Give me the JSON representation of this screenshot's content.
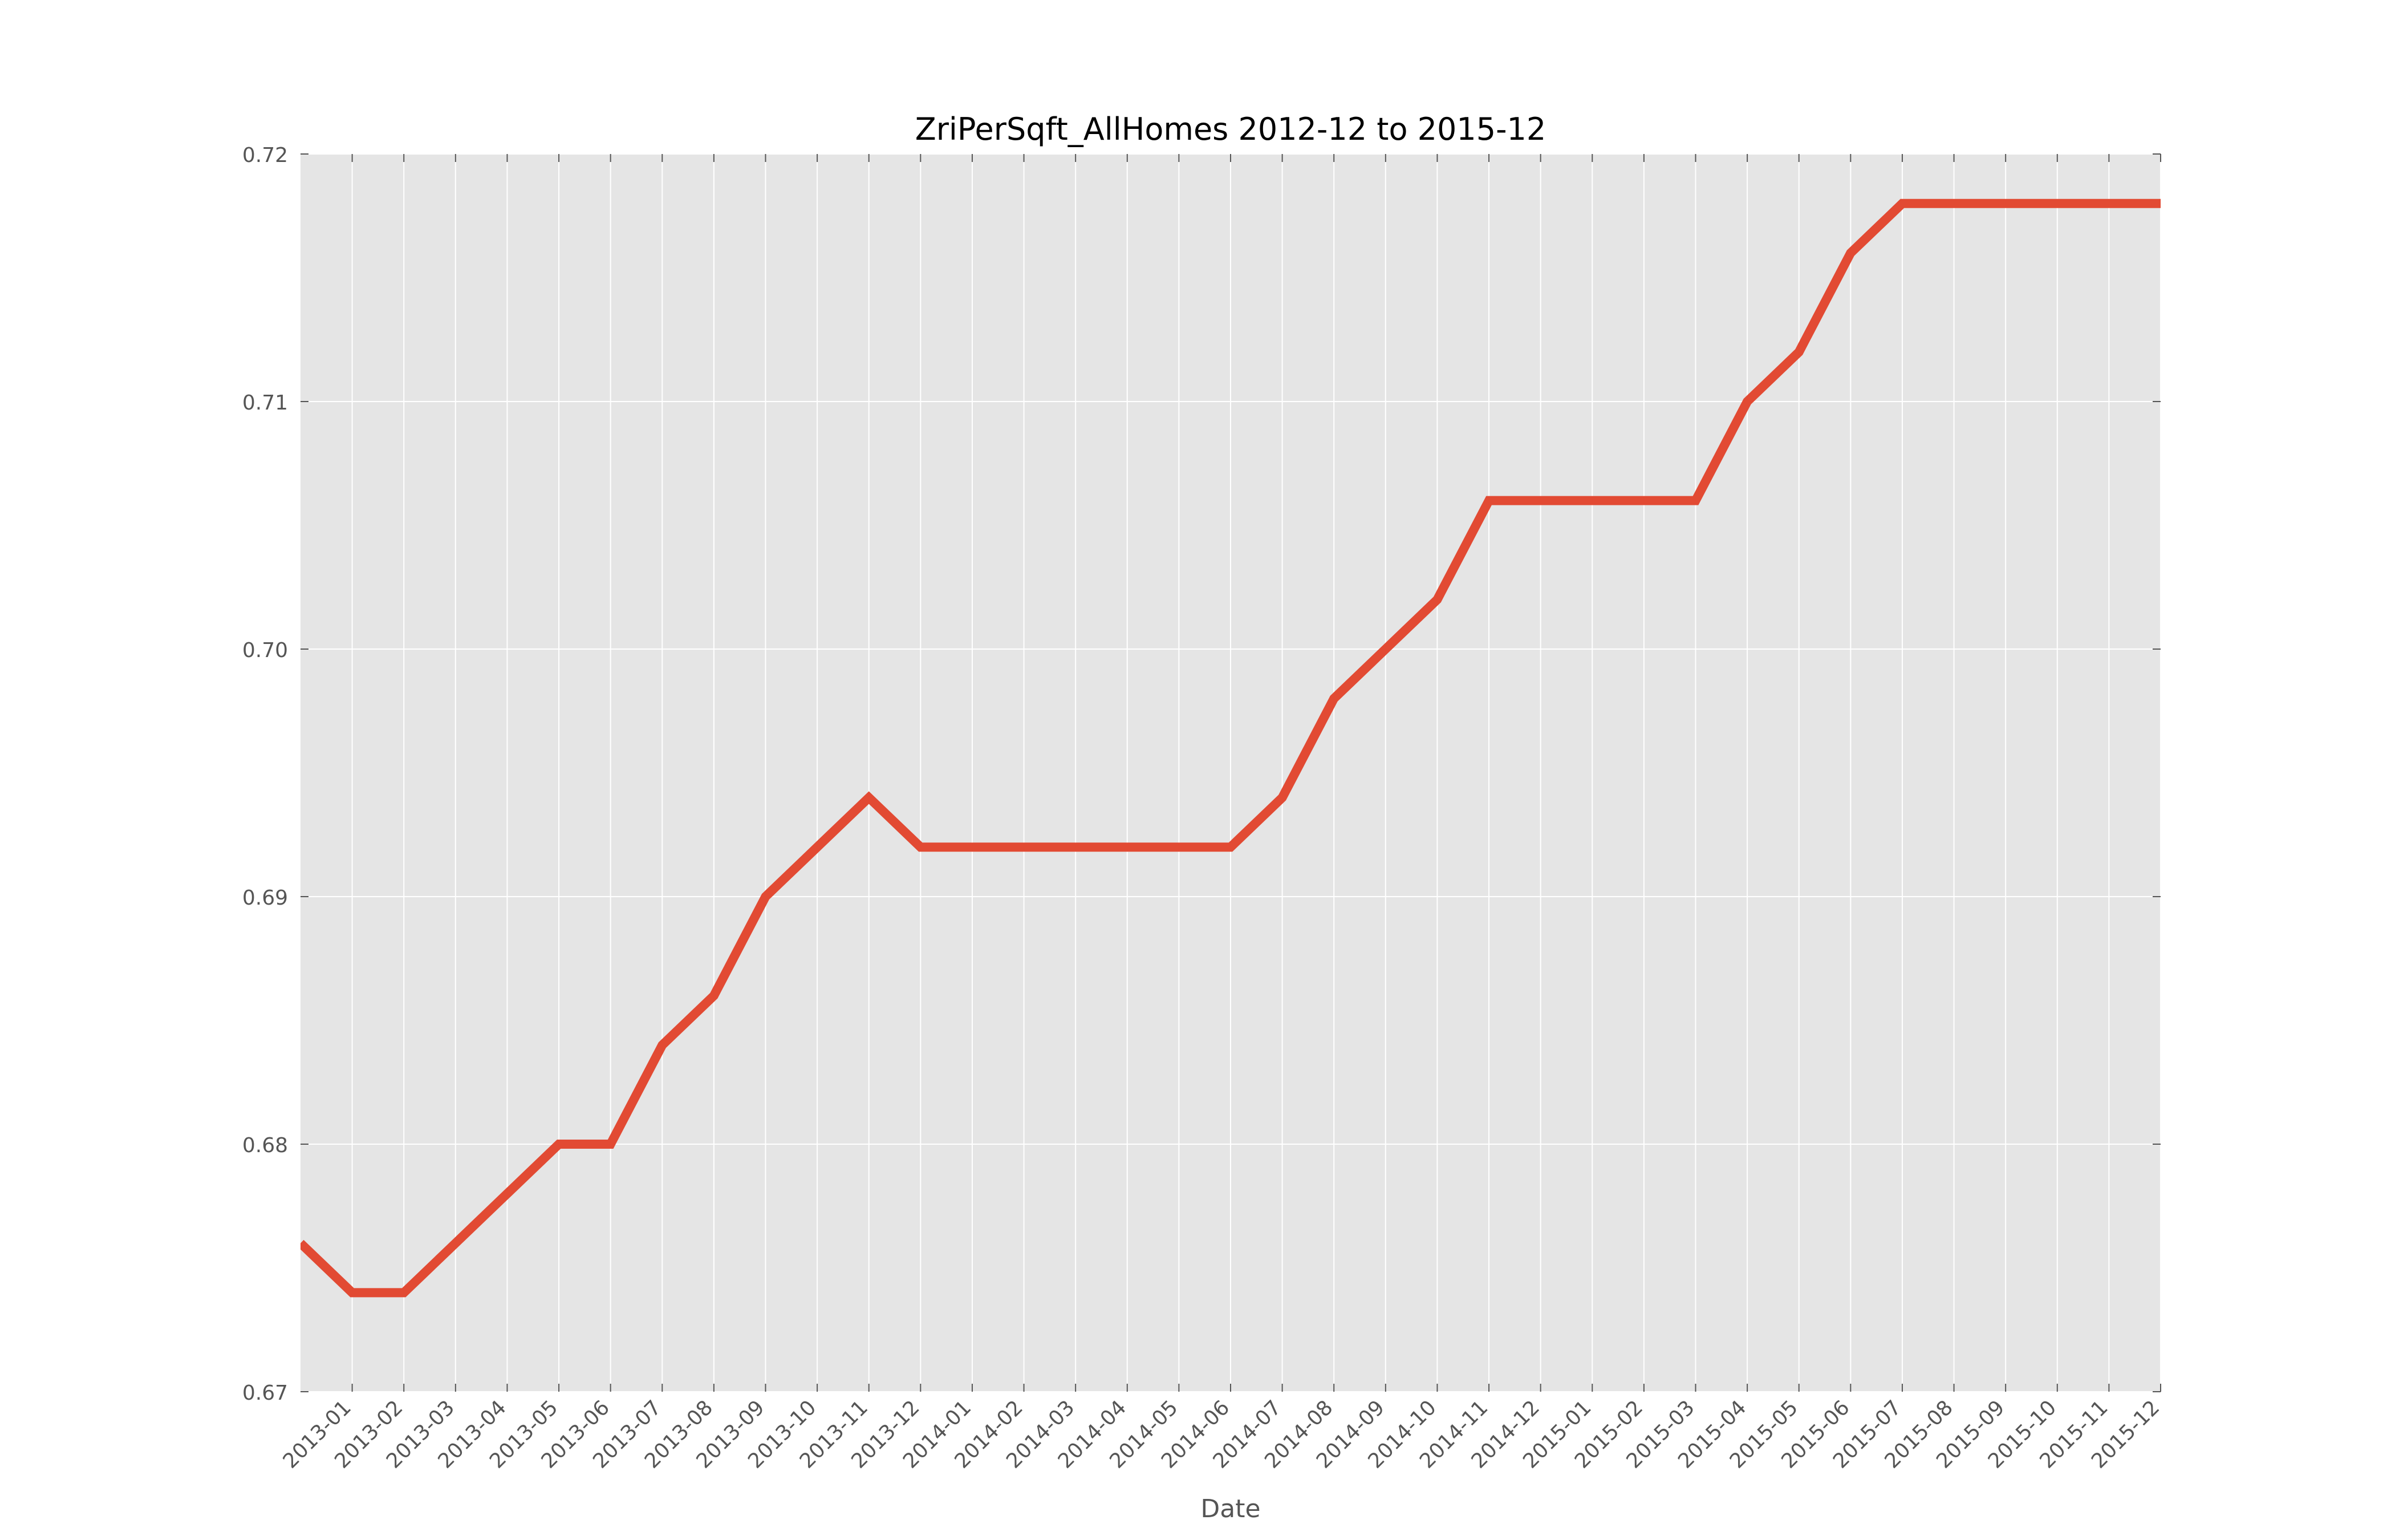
{
  "chart_data": {
    "type": "line",
    "title": "ZriPerSqft_AllHomes 2012-12 to 2015-12",
    "xlabel": "Date",
    "ylabel": "",
    "ylim": [
      0.67,
      0.72
    ],
    "yticks": [
      "0.67",
      "0.68",
      "0.69",
      "0.70",
      "0.71",
      "0.72"
    ],
    "grid": true,
    "x": [
      "2012-12",
      "2013-01",
      "2013-02",
      "2013-03",
      "2013-04",
      "2013-05",
      "2013-06",
      "2013-07",
      "2013-08",
      "2013-09",
      "2013-10",
      "2013-11",
      "2013-12",
      "2014-01",
      "2014-02",
      "2014-03",
      "2014-04",
      "2014-05",
      "2014-06",
      "2014-07",
      "2014-08",
      "2014-09",
      "2014-10",
      "2014-11",
      "2014-12",
      "2015-01",
      "2015-02",
      "2015-03",
      "2015-04",
      "2015-05",
      "2015-06",
      "2015-07",
      "2015-08",
      "2015-09",
      "2015-10",
      "2015-11",
      "2015-12"
    ],
    "xtick_labels": [
      "2013-01",
      "2013-02",
      "2013-03",
      "2013-04",
      "2013-05",
      "2013-06",
      "2013-07",
      "2013-08",
      "2013-09",
      "2013-10",
      "2013-11",
      "2013-12",
      "2014-01",
      "2014-02",
      "2014-03",
      "2014-04",
      "2014-05",
      "2014-06",
      "2014-07",
      "2014-08",
      "2014-09",
      "2014-10",
      "2014-11",
      "2014-12",
      "2015-01",
      "2015-02",
      "2015-03",
      "2015-04",
      "2015-05",
      "2015-06",
      "2015-07",
      "2015-08",
      "2015-09",
      "2015-10",
      "2015-11",
      "2015-12"
    ],
    "series": [
      {
        "color": "#e24a33",
        "values": [
          0.676,
          0.674,
          0.674,
          0.676,
          0.678,
          0.68,
          0.68,
          0.684,
          0.686,
          0.69,
          0.692,
          0.694,
          0.692,
          0.692,
          0.692,
          0.692,
          0.692,
          0.692,
          0.692,
          0.694,
          0.698,
          0.7,
          0.702,
          0.706,
          0.706,
          0.706,
          0.706,
          0.706,
          0.71,
          0.712,
          0.716,
          0.718,
          0.718,
          0.718,
          0.718,
          0.718,
          0.718
        ]
      }
    ],
    "colors": {
      "plot_bg": "#e5e5e5",
      "grid": "#ffffff",
      "tick_text": "#555555"
    }
  }
}
